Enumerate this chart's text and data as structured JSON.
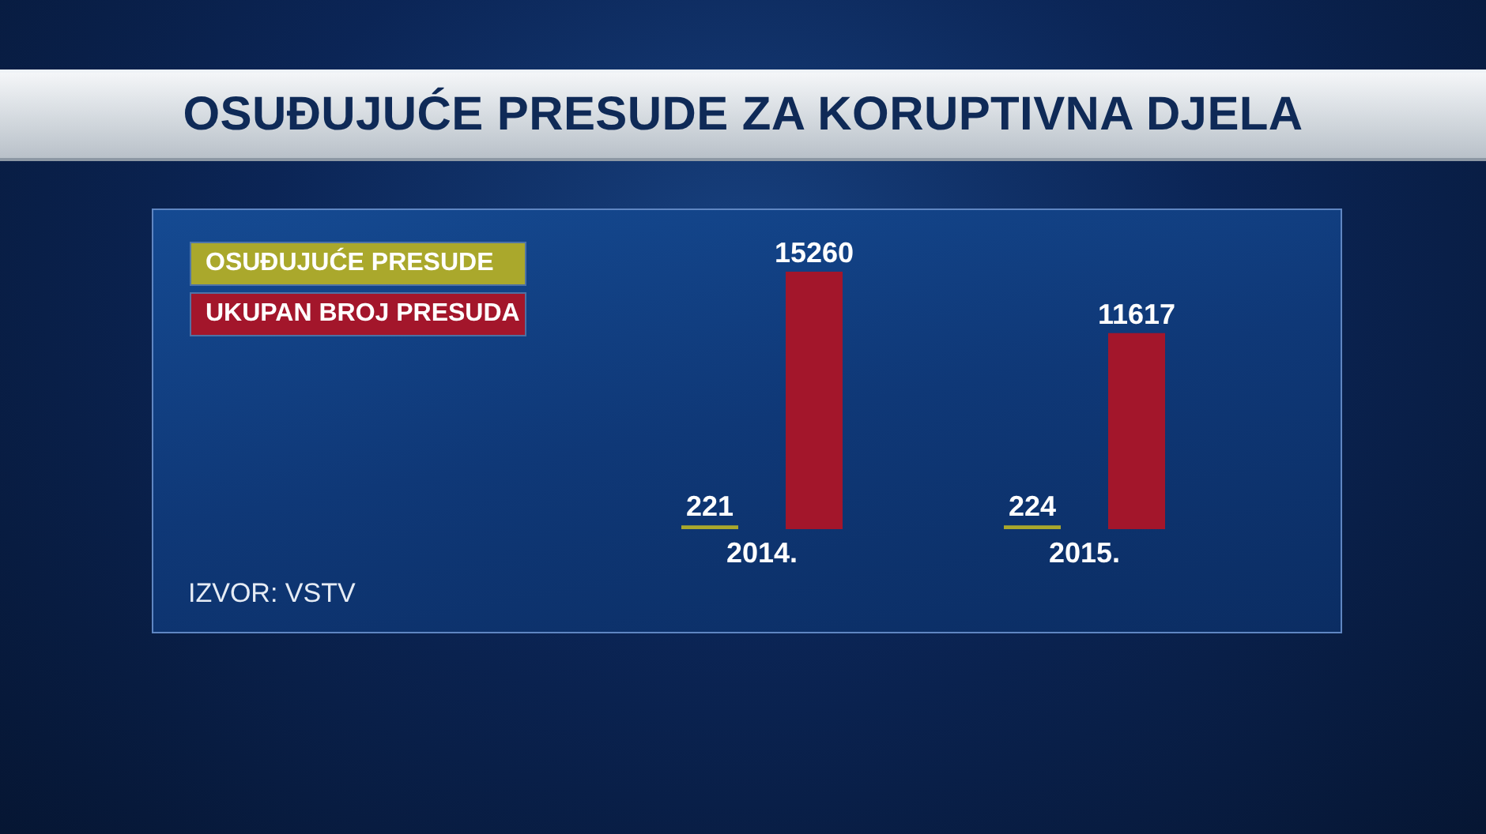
{
  "chart_data": {
    "type": "bar",
    "title": "OSUĐUJUĆE PRESUDE ZA KORUPTIVNA DJELA",
    "categories": [
      "2014.",
      "2015."
    ],
    "series": [
      {
        "name": "OSUĐUJUĆE PRESUDE",
        "color": "#aaa82c",
        "values": [
          221,
          224
        ]
      },
      {
        "name": "UKUPAN BROJ PRESUDA",
        "color": "#a3162b",
        "values": [
          15260,
          11617
        ]
      }
    ],
    "data_labels": true,
    "legend": "top left",
    "tick_labels": "x",
    "annotations": [
      "IZVOR: VSTV"
    ]
  }
}
